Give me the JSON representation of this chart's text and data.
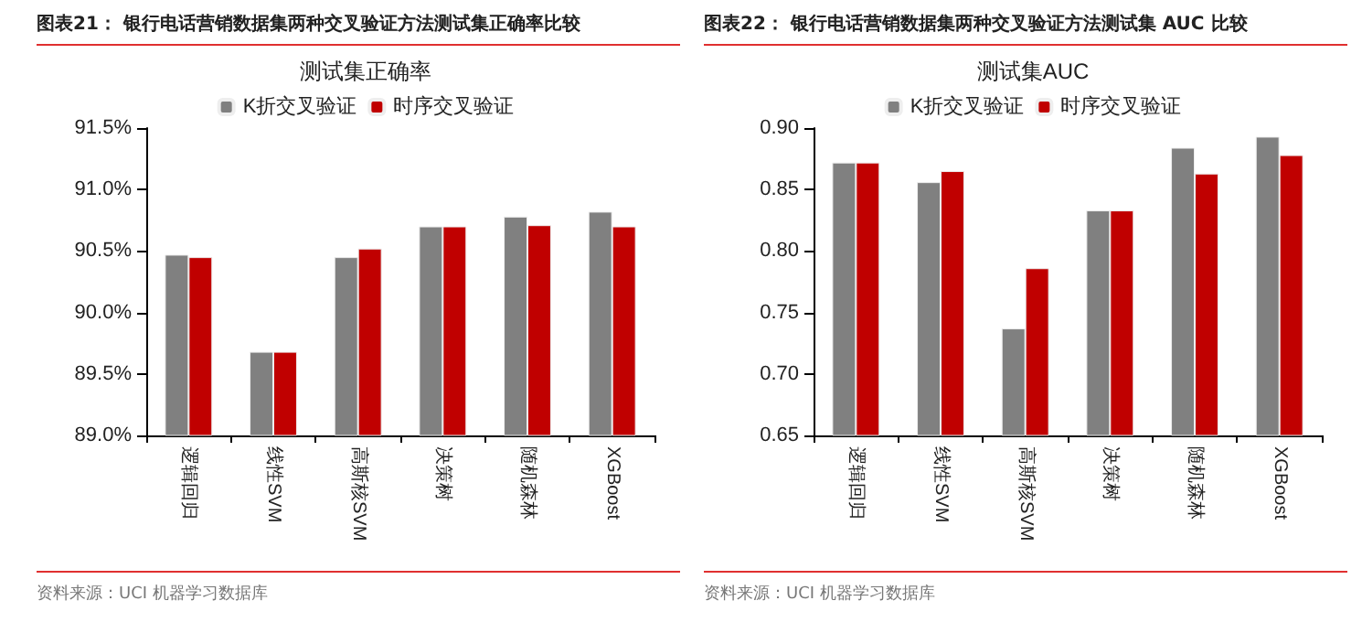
{
  "chart_data": [
    {
      "type": "bar",
      "title": "图表21：  银行电话营销数据集两种交叉验证方法测试集正确率比较",
      "subtitle": "测试集正确率",
      "categories": [
        "逻辑回归",
        "线性SVM",
        "高斯核SVM",
        "决策树",
        "随机森林",
        "XGBoost"
      ],
      "series": [
        {
          "name": "K折交叉验证",
          "color": "#808080",
          "values": [
            90.47,
            89.68,
            90.45,
            90.7,
            90.78,
            90.82
          ]
        },
        {
          "name": "时序交叉验证",
          "color": "#c00000",
          "values": [
            90.45,
            89.68,
            90.52,
            90.7,
            90.71,
            90.7
          ]
        }
      ],
      "ylim": [
        89.0,
        91.5
      ],
      "yticks": [
        {
          "value": 89.0,
          "label": "89.0%"
        },
        {
          "value": 89.5,
          "label": "89.5%"
        },
        {
          "value": 90.0,
          "label": "90.0%"
        },
        {
          "value": 90.5,
          "label": "90.5%"
        },
        {
          "value": 91.0,
          "label": "91.0%"
        },
        {
          "value": 91.5,
          "label": "91.5%"
        }
      ],
      "grid": false,
      "legend": "top",
      "annotations": [
        "资料来源：UCI 机器学习数据库"
      ]
    },
    {
      "type": "bar",
      "title": "图表22：  银行电话营销数据集两种交叉验证方法测试集 AUC 比较",
      "subtitle": "测试集AUC",
      "categories": [
        "逻辑回归",
        "线性SVM",
        "高斯核SVM",
        "决策树",
        "随机森林",
        "XGBoost"
      ],
      "series": [
        {
          "name": "K折交叉验证",
          "color": "#808080",
          "values": [
            0.872,
            0.856,
            0.737,
            0.833,
            0.884,
            0.893
          ]
        },
        {
          "name": "时序交叉验证",
          "color": "#c00000",
          "values": [
            0.872,
            0.865,
            0.786,
            0.833,
            0.863,
            0.878
          ]
        }
      ],
      "ylim": [
        0.65,
        0.9
      ],
      "yticks": [
        {
          "value": 0.65,
          "label": "0.65"
        },
        {
          "value": 0.7,
          "label": "0.70"
        },
        {
          "value": 0.75,
          "label": "0.75"
        },
        {
          "value": 0.8,
          "label": "0.80"
        },
        {
          "value": 0.85,
          "label": "0.85"
        },
        {
          "value": 0.9,
          "label": "0.90"
        }
      ],
      "grid": false,
      "legend": "top",
      "annotations": [
        "资料来源：UCI 机器学习数据库"
      ]
    }
  ]
}
